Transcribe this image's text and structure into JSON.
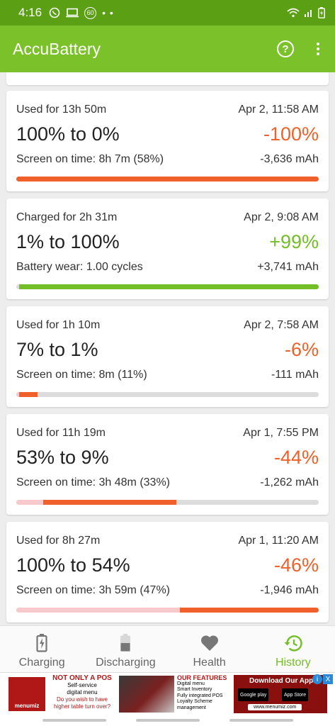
{
  "status_bar": {
    "time": "4:16",
    "icons": [
      "whatsapp-icon",
      "cast-icon",
      "sixty-icon",
      "more-dots"
    ],
    "right_icons": [
      "wifi-icon",
      "signal-icon",
      "battery-charging-icon"
    ],
    "badge": "60"
  },
  "app_bar": {
    "title": "AccuBattery",
    "help_label": "?"
  },
  "colors": {
    "status_bar": "#5b9f15",
    "app_bar": "#7bc12a",
    "discharge": "#f0602a",
    "charge": "#73be27",
    "track": "#dcdcdc",
    "faded_discharge": "#f7c9cd"
  },
  "sessions": [
    {
      "duration": "Used for 13h 50m",
      "date": "Apr 2, 11:58 AM",
      "range": "100% to 0%",
      "change": "-100%",
      "detail": "Screen on time: 8h 7m (58%)",
      "mah": "-3,636 mAh",
      "kind": "discharge",
      "bar_from": 0,
      "bar_to": 100
    },
    {
      "duration": "Charged for 2h 31m",
      "date": "Apr 2, 9:08 AM",
      "range": "1% to 100%",
      "change": "+99%",
      "detail": "Battery wear: 1.00 cycles",
      "mah": "+3,741 mAh",
      "kind": "charge",
      "bar_from": 1,
      "bar_to": 100
    },
    {
      "duration": "Used for 1h 10m",
      "date": "Apr 2, 7:58 AM",
      "range": "7% to 1%",
      "change": "-6%",
      "detail": "Screen on time: 8m (11%)",
      "mah": "-111 mAh",
      "kind": "discharge",
      "bar_from": 1,
      "bar_to": 7
    },
    {
      "duration": "Used for 11h 19m",
      "date": "Apr 1, 7:55 PM",
      "range": "53% to 9%",
      "change": "-44%",
      "detail": "Screen on time: 3h 48m (33%)",
      "mah": "-1,262 mAh",
      "kind": "discharge",
      "bar_from": 9,
      "bar_to": 53
    },
    {
      "duration": "Used for 8h 27m",
      "date": "Apr 1, 11:20 AM",
      "range": "100% to 54%",
      "change": "-46%",
      "detail": "Screen on time: 3h 59m (47%)",
      "mah": "-1,946 mAh",
      "kind": "discharge",
      "bar_from": 54,
      "bar_to": 100
    }
  ],
  "bottom_nav": [
    {
      "label": "Charging",
      "icon": "battery-charging-icon",
      "active": false
    },
    {
      "label": "Discharging",
      "icon": "battery-discharging-icon",
      "active": false
    },
    {
      "label": "Health",
      "icon": "heart-icon",
      "active": false
    },
    {
      "label": "History",
      "icon": "history-icon",
      "active": true
    }
  ],
  "ad": {
    "logo_text": "menumiz",
    "headline": "NOT ONLY A POS",
    "sub1": "Self-service",
    "sub2": "digital menu",
    "question": "Do you wish to have higher table turn over?",
    "features_title": "OUR FEATURES",
    "features": [
      "Digital menu",
      "Smart Inventory",
      "Fully integrated POS",
      "Loyalty Scheme management"
    ],
    "download": "Download Our App",
    "google_play": "Google play",
    "app_store": "App Store",
    "url": "www.menumiz.com",
    "info": "i",
    "close": "X"
  }
}
